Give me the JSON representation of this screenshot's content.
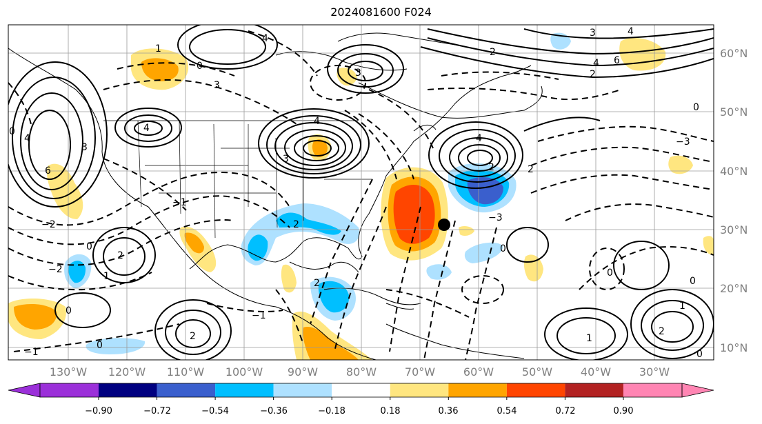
{
  "title": "2024081600 F024",
  "lon_labels": [
    "130°W",
    "120°W",
    "110°W",
    "100°W",
    "90°W",
    "80°W",
    "70°W",
    "60°W",
    "50°W",
    "40°W",
    "30°W"
  ],
  "lat_labels": [
    "60°N",
    "50°N",
    "40°N",
    "30°N",
    "20°N",
    "10°N"
  ],
  "colorbar": {
    "ticks": [
      "−0.90",
      "−0.72",
      "−0.54",
      "−0.36",
      "−0.18",
      "0.18",
      "0.36",
      "0.54",
      "0.72",
      "0.90"
    ],
    "colors": [
      "#9b30d9",
      "#000080",
      "#3a5fcd",
      "#00bfff",
      "#aee1ff",
      "#ffffff",
      "#ffe680",
      "#ffa500",
      "#ff4500",
      "#b22222",
      "#ff85b3"
    ]
  },
  "contour_labels": [
    "0",
    "2",
    "3",
    "4",
    "6",
    "5",
    "1",
    "−1",
    "−2",
    "−3"
  ],
  "marker": "storm-center"
}
